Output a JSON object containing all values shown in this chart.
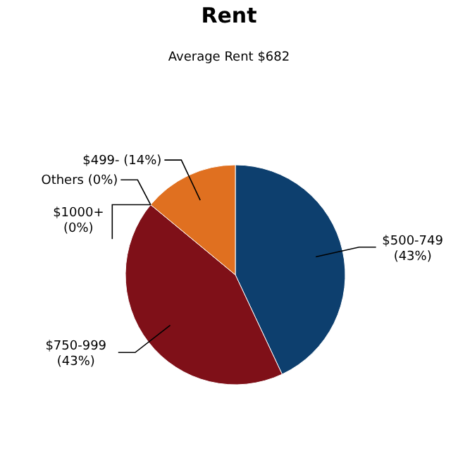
{
  "chart_data": {
    "type": "pie",
    "title": "Rent",
    "subtitle": "Average Rent  $682",
    "categories": [
      "$500-749",
      "$750-999",
      "$1000+",
      "Others",
      "$499-"
    ],
    "values": [
      43,
      43,
      0,
      0,
      14
    ],
    "value_labels": [
      "(43%)",
      "(43%)",
      "(0%)",
      "(0%)",
      "(14%)"
    ],
    "colors": [
      "#0d3f6e",
      "#7f1018",
      "#5a7a2a",
      "#6a4a8a",
      "#e07020"
    ],
    "legend": false
  }
}
